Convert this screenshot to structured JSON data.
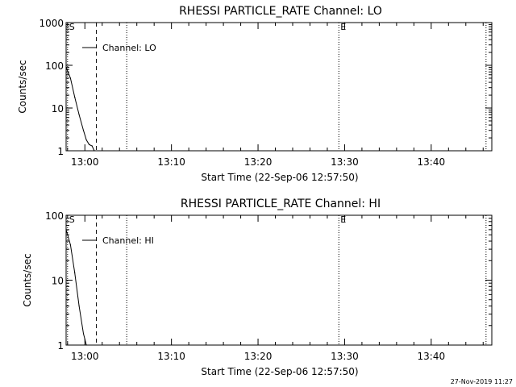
{
  "timestamp": "27-Nov-2019 11:27",
  "chart_data": [
    {
      "type": "line",
      "title": "RHESSI PARTICLE_RATE Channel: LO",
      "xlabel": "Start Time (22-Sep-06 12:57:50)",
      "ylabel": "Counts/sec",
      "y_scale": "log",
      "ylim": [
        1,
        1000
      ],
      "yticks": [
        1,
        10,
        100,
        1000
      ],
      "ytick_labels": [
        "1",
        "10",
        "100",
        "1000"
      ],
      "xlim": [
        "12:57:50",
        "13:47:00"
      ],
      "xticks": [
        "13:00",
        "13:10",
        "13:20",
        "13:30",
        "13:40"
      ],
      "grid": false,
      "legend_position": "top-left",
      "series": [
        {
          "name": "Channel: LO",
          "x": [
            "12:57:50",
            "12:58:20",
            "12:58:50",
            "12:59:20",
            "12:59:50",
            "13:00:10",
            "13:00:30",
            "13:00:50",
            "13:01:05"
          ],
          "values": [
            90,
            50,
            18,
            7,
            3,
            1.8,
            1.4,
            1.3,
            1.0
          ]
        }
      ],
      "markers": [
        {
          "time": "12:58:00",
          "style": "dotted",
          "label": "S"
        },
        {
          "time": "13:01:20",
          "style": "dashed",
          "label": ""
        },
        {
          "time": "13:04:50",
          "style": "dotted",
          "label": ""
        },
        {
          "time": "13:29:20",
          "style": "dotted",
          "label": "E"
        },
        {
          "time": "13:46:20",
          "style": "dotted",
          "label": ""
        }
      ]
    },
    {
      "type": "line",
      "title": "RHESSI PARTICLE_RATE Channel: HI",
      "xlabel": "Start Time (22-Sep-06 12:57:50)",
      "ylabel": "Counts/sec",
      "y_scale": "log",
      "ylim": [
        1,
        100
      ],
      "yticks": [
        1,
        10,
        100
      ],
      "ytick_labels": [
        "1",
        "10",
        "100"
      ],
      "xlim": [
        "12:57:50",
        "13:47:00"
      ],
      "xticks": [
        "13:00",
        "13:10",
        "13:20",
        "13:30",
        "13:40"
      ],
      "grid": false,
      "legend_position": "top-left",
      "series": [
        {
          "name": "Channel: HI",
          "x": [
            "12:57:50",
            "12:58:20",
            "12:58:50",
            "12:59:20",
            "12:59:50",
            "13:00:10"
          ],
          "values": [
            60,
            35,
            13,
            4,
            1.5,
            1.0
          ]
        }
      ],
      "markers": [
        {
          "time": "12:58:00",
          "style": "dotted",
          "label": "S"
        },
        {
          "time": "13:01:20",
          "style": "dashed",
          "label": ""
        },
        {
          "time": "13:04:50",
          "style": "dotted",
          "label": ""
        },
        {
          "time": "13:29:20",
          "style": "dotted",
          "label": "E"
        },
        {
          "time": "13:46:20",
          "style": "dotted",
          "label": ""
        }
      ]
    }
  ]
}
